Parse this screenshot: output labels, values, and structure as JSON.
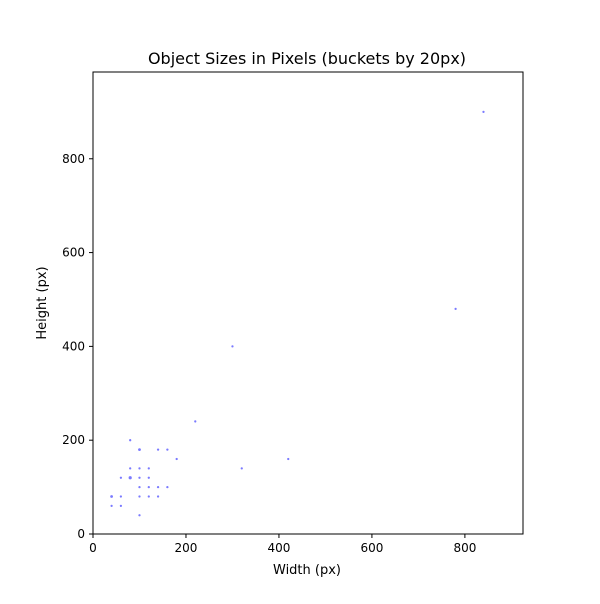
{
  "chart_data": {
    "type": "scatter",
    "title": "Object Sizes in Pixels (buckets by 20px)",
    "xlabel": "Width (px)",
    "ylabel": "Height (px)",
    "xlim": [
      0,
      925
    ],
    "ylim": [
      0,
      985
    ],
    "xticks": [
      0,
      200,
      400,
      600,
      800
    ],
    "yticks": [
      0,
      200,
      400,
      600,
      800
    ],
    "grid": false,
    "legend": "none",
    "colors": {
      "points": "#3333ff",
      "axes": "#000000",
      "background": "#ffffff"
    },
    "series": [
      {
        "points": [
          {
            "x": 40,
            "y": 60,
            "count": 2
          },
          {
            "x": 40,
            "y": 80,
            "count": 3
          },
          {
            "x": 60,
            "y": 60,
            "count": 2
          },
          {
            "x": 60,
            "y": 80,
            "count": 2
          },
          {
            "x": 60,
            "y": 120,
            "count": 2
          },
          {
            "x": 80,
            "y": 120,
            "count": 4
          },
          {
            "x": 80,
            "y": 140,
            "count": 2
          },
          {
            "x": 80,
            "y": 200,
            "count": 2
          },
          {
            "x": 100,
            "y": 40,
            "count": 2
          },
          {
            "x": 100,
            "y": 80,
            "count": 2
          },
          {
            "x": 100,
            "y": 100,
            "count": 2
          },
          {
            "x": 100,
            "y": 120,
            "count": 2
          },
          {
            "x": 100,
            "y": 140,
            "count": 2
          },
          {
            "x": 100,
            "y": 180,
            "count": 3
          },
          {
            "x": 120,
            "y": 80,
            "count": 2
          },
          {
            "x": 120,
            "y": 100,
            "count": 2
          },
          {
            "x": 120,
            "y": 120,
            "count": 2
          },
          {
            "x": 120,
            "y": 140,
            "count": 2
          },
          {
            "x": 140,
            "y": 80,
            "count": 2
          },
          {
            "x": 140,
            "y": 100,
            "count": 2
          },
          {
            "x": 140,
            "y": 180,
            "count": 2
          },
          {
            "x": 160,
            "y": 100,
            "count": 2
          },
          {
            "x": 160,
            "y": 180,
            "count": 2
          },
          {
            "x": 180,
            "y": 160,
            "count": 2
          },
          {
            "x": 220,
            "y": 240,
            "count": 2
          },
          {
            "x": 300,
            "y": 400,
            "count": 2
          },
          {
            "x": 320,
            "y": 140,
            "count": 2
          },
          {
            "x": 420,
            "y": 160,
            "count": 2
          },
          {
            "x": 780,
            "y": 480,
            "count": 2
          },
          {
            "x": 840,
            "y": 900,
            "count": 2
          }
        ]
      }
    ]
  }
}
